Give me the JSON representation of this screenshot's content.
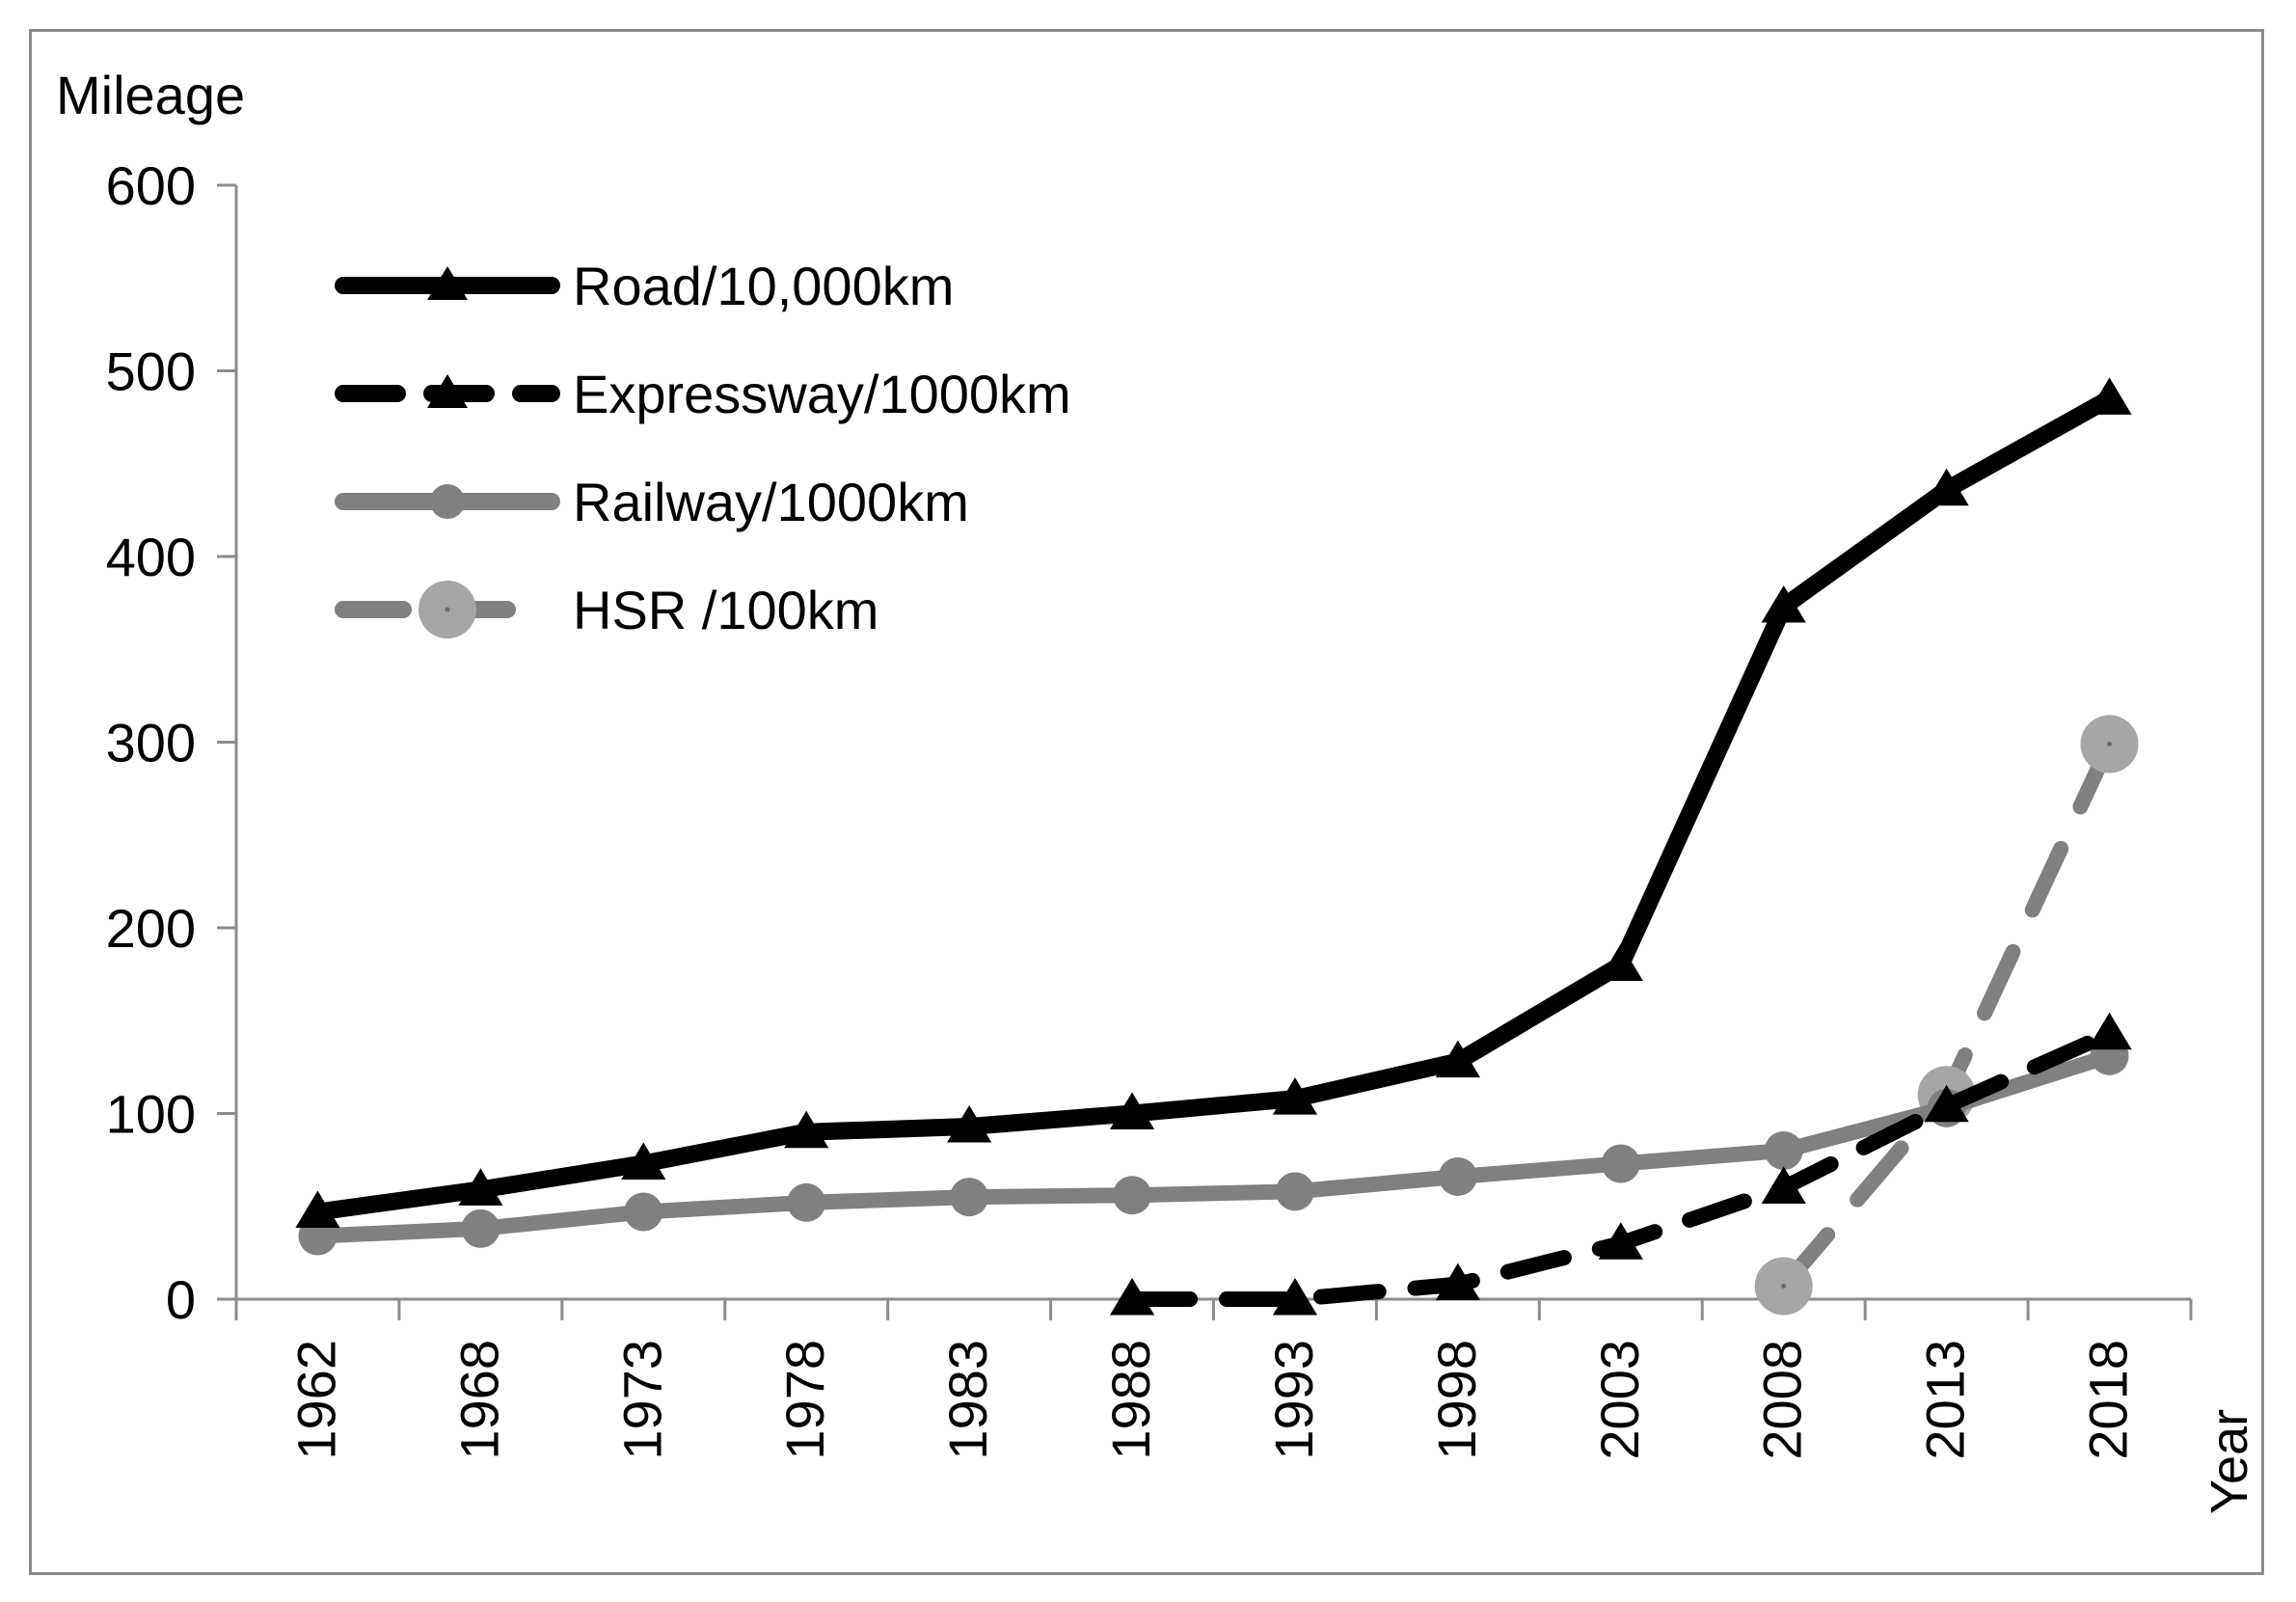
{
  "chart_data": {
    "type": "line",
    "title": "",
    "xlabel": "Year",
    "ylabel": "Mileage",
    "ylim": [
      0,
      600
    ],
    "yticks": [
      "0",
      "100",
      "200",
      "300",
      "400",
      "500",
      "600"
    ],
    "categories": [
      "1962",
      "1968",
      "1973",
      "1978",
      "1983",
      "1988",
      "1993",
      "1998",
      "2003",
      "2008",
      "2013",
      "2018"
    ],
    "legend_position": "top-left",
    "series": [
      {
        "name": "Road/10,000km",
        "color": "#000000",
        "style": "solid",
        "marker": "triangle",
        "values": [
          47,
          59,
          73,
          90,
          93,
          100,
          108,
          128,
          180,
          373,
          436,
          485
        ]
      },
      {
        "name": "Expressway/1000km",
        "color": "#000000",
        "style": "dashed",
        "marker": "triangle",
        "values": [
          null,
          null,
          null,
          null,
          null,
          0,
          0,
          8,
          30,
          60,
          104,
          143
        ]
      },
      {
        "name": "Railway/1000km",
        "color": "#808080",
        "style": "solid",
        "marker": "circle",
        "values": [
          34,
          38,
          47,
          52,
          55,
          56,
          58,
          66,
          73,
          80,
          103,
          131
        ]
      },
      {
        "name": "HSR /100km",
        "color": "#808080",
        "marker_color": "#a6a6a6",
        "style": "dashed",
        "marker": "circle-large",
        "values": [
          null,
          null,
          null,
          null,
          null,
          null,
          null,
          null,
          null,
          7,
          110,
          299
        ]
      }
    ]
  }
}
